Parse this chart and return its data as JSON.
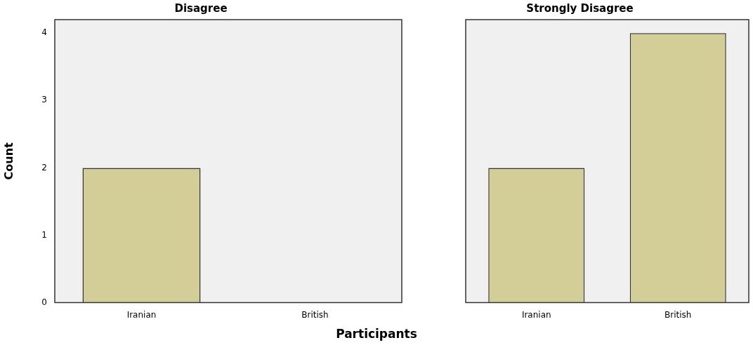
{
  "chart_data": [
    {
      "type": "bar",
      "title": "Disagree",
      "categories": [
        "Iranian",
        "British"
      ],
      "values": [
        2,
        0
      ],
      "color": "#d3cd97",
      "ylabel": "Count",
      "xlabel": "Participants",
      "ylim": [
        0,
        4.2
      ],
      "yticks": [
        0,
        1,
        2,
        3,
        4
      ]
    },
    {
      "type": "bar",
      "title": "Strongly Disagree",
      "categories": [
        "Iranian",
        "British"
      ],
      "values": [
        2,
        4
      ],
      "color": "#d3cd97",
      "ylim": [
        0,
        4.2
      ],
      "yticks": [
        0,
        1,
        2,
        3,
        4
      ],
      "tick_labels": "x"
    }
  ]
}
